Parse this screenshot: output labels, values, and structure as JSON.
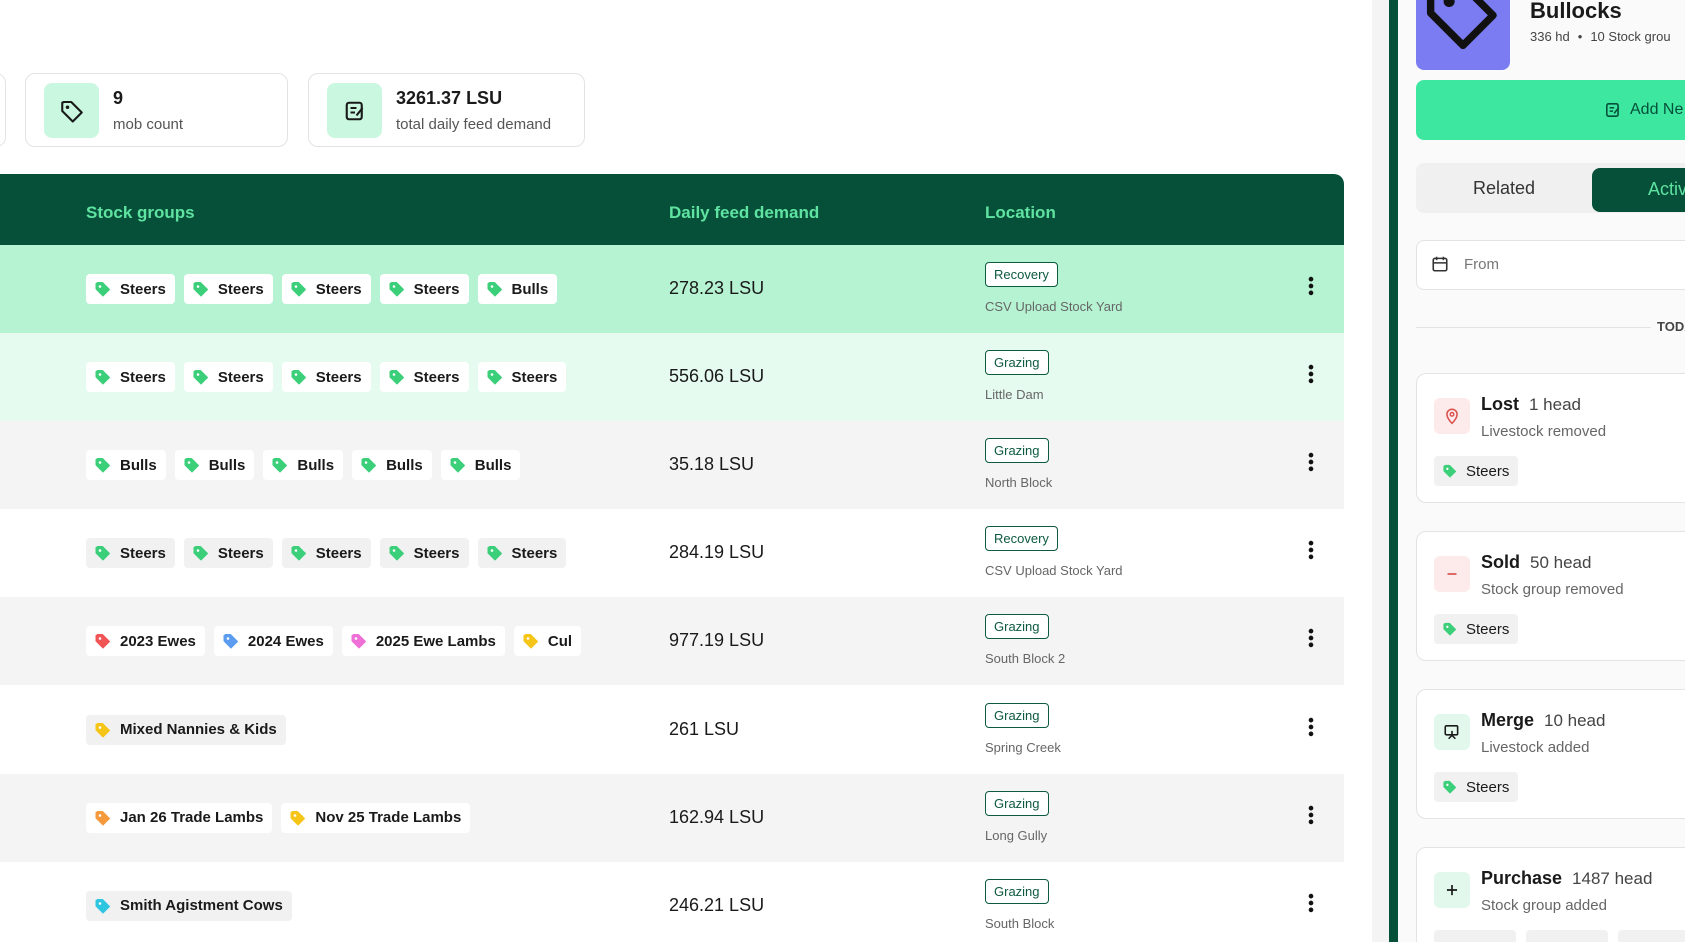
{
  "stats": [
    {
      "value": "9",
      "label": "mob count"
    },
    {
      "value": "3261.37 LSU",
      "label": "total daily feed demand"
    }
  ],
  "table": {
    "headers": [
      "Stock groups",
      "Daily feed demand",
      "Location"
    ],
    "rows": [
      {
        "tags": [
          {
            "name": "Steers",
            "color": "#3ccf7a"
          },
          {
            "name": "Steers",
            "color": "#3ccf7a"
          },
          {
            "name": "Steers",
            "color": "#3ccf7a"
          },
          {
            "name": "Steers",
            "color": "#3ccf7a"
          },
          {
            "name": "Bulls",
            "color": "#3ccf7a"
          }
        ],
        "demand": "278.23 LSU",
        "status": "Recovery",
        "location": "CSV Upload Stock Yard"
      },
      {
        "tags": [
          {
            "name": "Steers",
            "color": "#3ccf7a"
          },
          {
            "name": "Steers",
            "color": "#3ccf7a"
          },
          {
            "name": "Steers",
            "color": "#3ccf7a"
          },
          {
            "name": "Steers",
            "color": "#3ccf7a"
          },
          {
            "name": "Steers",
            "color": "#3ccf7a"
          }
        ],
        "demand": "556.06 LSU",
        "status": "Grazing",
        "location": "Little Dam"
      },
      {
        "tags": [
          {
            "name": "Bulls",
            "color": "#3ccf7a"
          },
          {
            "name": "Bulls",
            "color": "#3ccf7a"
          },
          {
            "name": "Bulls",
            "color": "#3ccf7a"
          },
          {
            "name": "Bulls",
            "color": "#3ccf7a"
          },
          {
            "name": "Bulls",
            "color": "#3ccf7a"
          }
        ],
        "demand": "35.18 LSU",
        "status": "Grazing",
        "location": "North Block"
      },
      {
        "tags": [
          {
            "name": "Steers",
            "color": "#3ccf7a"
          },
          {
            "name": "Steers",
            "color": "#3ccf7a"
          },
          {
            "name": "Steers",
            "color": "#3ccf7a"
          },
          {
            "name": "Steers",
            "color": "#3ccf7a"
          },
          {
            "name": "Steers",
            "color": "#3ccf7a"
          }
        ],
        "demand": "284.19 LSU",
        "status": "Recovery",
        "location": "CSV Upload Stock Yard"
      },
      {
        "tags": [
          {
            "name": "2023 Ewes",
            "color": "#f05454"
          },
          {
            "name": "2024 Ewes",
            "color": "#5b9cf0"
          },
          {
            "name": "2025 Ewe Lambs",
            "color": "#ee6fd6"
          },
          {
            "name": "Cul",
            "color": "#f5c518"
          }
        ],
        "demand": "977.19 LSU",
        "status": "Grazing",
        "location": "South Block 2"
      },
      {
        "tags": [
          {
            "name": "Mixed Nannies & Kids",
            "color": "#f5c518"
          }
        ],
        "demand": "261 LSU",
        "status": "Grazing",
        "location": "Spring Creek"
      },
      {
        "tags": [
          {
            "name": "Jan 26 Trade Lambs",
            "color": "#f59a3c"
          },
          {
            "name": "Nov 25 Trade Lambs",
            "color": "#f5c518"
          }
        ],
        "demand": "162.94 LSU",
        "status": "Grazing",
        "location": "Long Gully"
      },
      {
        "tags": [
          {
            "name": "Smith Agistment Cows",
            "color": "#2ec5e0"
          }
        ],
        "demand": "246.21 LSU",
        "status": "Grazing",
        "location": "South Block"
      }
    ]
  },
  "sidebar": {
    "title": "Bullocks",
    "head_count": "336 hd",
    "groups": "10 Stock grou",
    "button": "Add Ne",
    "tabs": [
      "Related",
      "Activ"
    ],
    "date_from": "From",
    "divider": "TODA",
    "events": [
      {
        "type": "Lost",
        "count": "1 head",
        "desc": "Livestock removed",
        "tag": "Steers"
      },
      {
        "type": "Sold",
        "count": "50 head",
        "desc": "Stock group removed",
        "tag": "Steers"
      },
      {
        "type": "Merge",
        "count": "10 head",
        "desc": "Livestock added",
        "tag": "Steers"
      },
      {
        "type": "Purchase",
        "count": "1487 head",
        "desc": "Stock group added",
        "tag": null
      }
    ]
  }
}
